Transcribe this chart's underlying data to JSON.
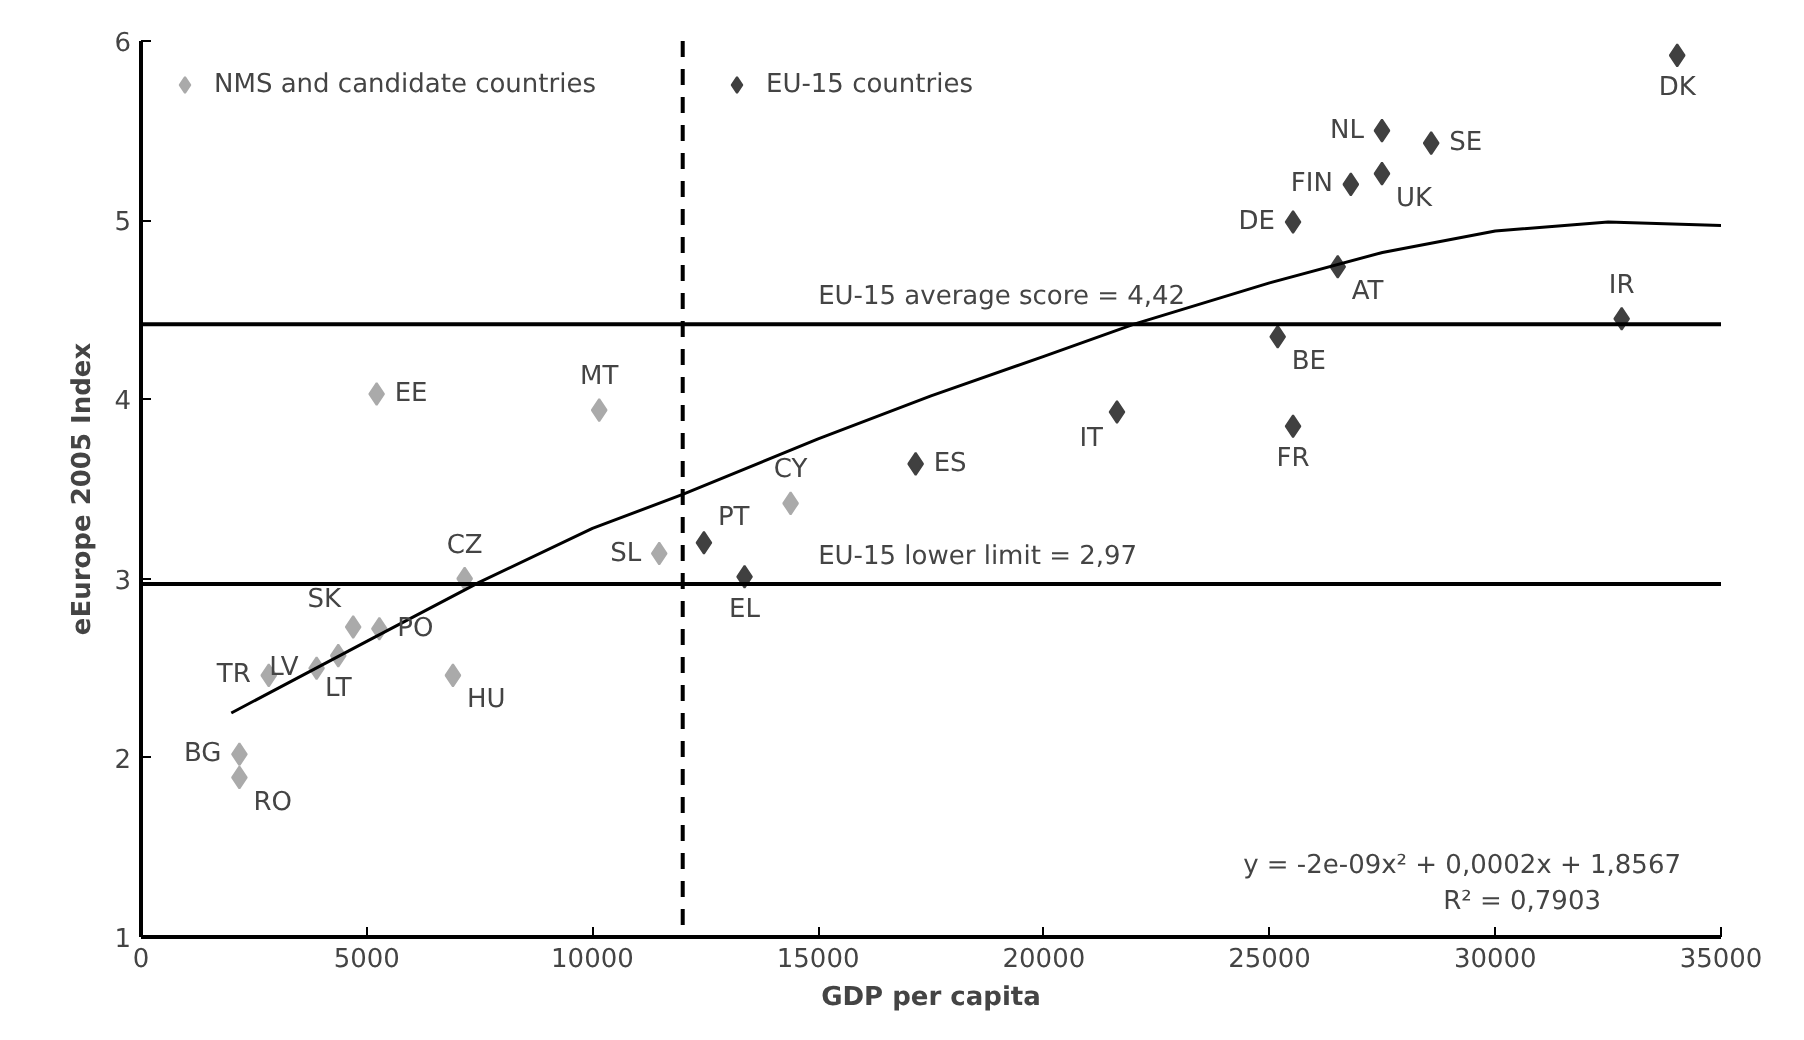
{
  "chart_data": {
    "type": "scatter",
    "xlabel": "GDP per capita",
    "ylabel": "eEurope 2005 Index",
    "xlim": [
      0,
      35000
    ],
    "xticks": [
      0,
      5000,
      10000,
      15000,
      20000,
      25000,
      30000,
      35000
    ],
    "ylim": [
      1,
      6
    ],
    "yticks": [
      1,
      2,
      3,
      4,
      5,
      6
    ],
    "grid": false,
    "legend": "top left",
    "marker": "diamond",
    "series": [
      {
        "name": "NMS and candidate countries",
        "color": "#aaaaaa",
        "x": [
          2180,
          2180,
          2830,
          3890,
          4370,
          4700,
          5280,
          6910,
          7170,
          11480,
          14390,
          10150,
          5220
        ],
        "values": [
          2.02,
          1.89,
          2.46,
          2.5,
          2.57,
          2.73,
          2.72,
          2.46,
          3.0,
          3.14,
          3.42,
          3.94,
          4.03
        ]
      },
      {
        "name": "EU-15 countries",
        "color": "#404040",
        "x": [
          12470,
          13370,
          17160,
          21620,
          25520,
          25180,
          26510,
          25520,
          26800,
          27490,
          27490,
          28580,
          32800,
          34030
        ],
        "values": [
          3.2,
          3.01,
          3.64,
          3.93,
          3.85,
          4.35,
          4.74,
          4.99,
          5.2,
          5.26,
          5.5,
          5.43,
          4.45,
          5.92
        ]
      },
      {
        "type": "line",
        "color": "#000000",
        "marker": "none",
        "x": [
          2000,
          5000,
          7500,
          10000,
          12000,
          15000,
          17500,
          20000,
          22000,
          25000,
          27500,
          30000,
          32500,
          35000
        ],
        "values": [
          2.25,
          2.65,
          2.98,
          3.28,
          3.47,
          3.78,
          4.02,
          4.24,
          4.42,
          4.65,
          4.82,
          4.94,
          4.99,
          4.97
        ]
      }
    ],
    "ref_lines": [
      {
        "axis": "y",
        "value": 4.42,
        "label": "EU-15 average score = 4,42",
        "color": "#000000"
      },
      {
        "axis": "y",
        "value": 2.97,
        "label": "EU-15 lower limit = 2,97",
        "color": "#000000"
      },
      {
        "axis": "x",
        "value": 12000,
        "color": "#000000",
        "line_style": "dashed"
      }
    ],
    "annotations": [
      {
        "text": "BG",
        "x": 2180,
        "y": 2.02
      },
      {
        "text": "RO",
        "x": 2180,
        "y": 1.89
      },
      {
        "text": "TR",
        "x": 2830,
        "y": 2.46
      },
      {
        "text": "LV",
        "x": 3890,
        "y": 2.5
      },
      {
        "text": "LT",
        "x": 4370,
        "y": 2.57
      },
      {
        "text": "SK",
        "x": 4700,
        "y": 2.73
      },
      {
        "text": "PO",
        "x": 5280,
        "y": 2.72
      },
      {
        "text": "HU",
        "x": 6910,
        "y": 2.46
      },
      {
        "text": "CZ",
        "x": 7170,
        "y": 3.0
      },
      {
        "text": "SL",
        "x": 11480,
        "y": 3.14
      },
      {
        "text": "CY",
        "x": 14390,
        "y": 3.42
      },
      {
        "text": "MT",
        "x": 10150,
        "y": 3.94
      },
      {
        "text": "EE",
        "x": 5220,
        "y": 4.03
      },
      {
        "text": "PT",
        "x": 12470,
        "y": 3.2
      },
      {
        "text": "EL",
        "x": 13370,
        "y": 3.01
      },
      {
        "text": "ES",
        "x": 17160,
        "y": 3.64
      },
      {
        "text": "IT",
        "x": 21620,
        "y": 3.93
      },
      {
        "text": "FR",
        "x": 25520,
        "y": 3.85
      },
      {
        "text": "BE",
        "x": 25180,
        "y": 4.35
      },
      {
        "text": "AT",
        "x": 26510,
        "y": 4.74
      },
      {
        "text": "DE",
        "x": 25520,
        "y": 4.99
      },
      {
        "text": "FIN",
        "x": 26800,
        "y": 5.2
      },
      {
        "text": "UK",
        "x": 27490,
        "y": 5.26
      },
      {
        "text": "NL",
        "x": 27490,
        "y": 5.5
      },
      {
        "text": "SE",
        "x": 28580,
        "y": 5.43
      },
      {
        "text": "IR",
        "x": 32800,
        "y": 4.45
      },
      {
        "text": "DK",
        "x": 34030,
        "y": 5.92
      },
      "y = -2e-09x² + 0,0002x + 1,8567",
      "R² = 0,7903"
    ]
  }
}
